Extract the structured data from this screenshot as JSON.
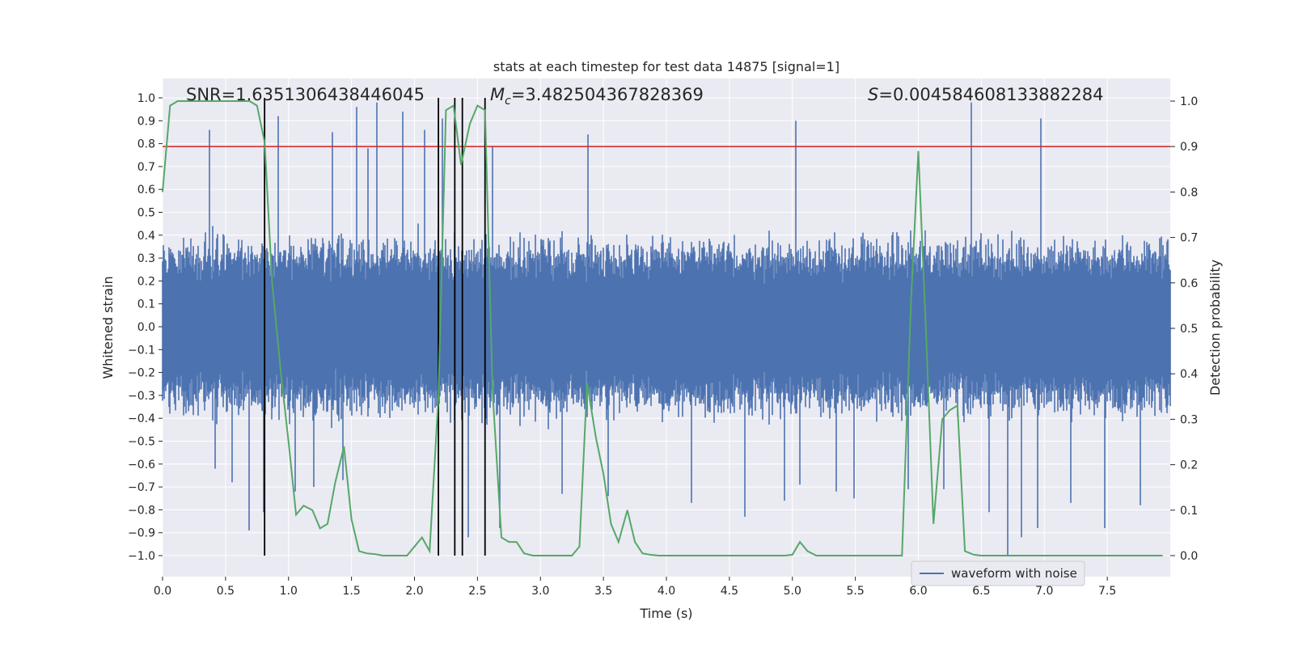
{
  "chart_data": {
    "type": "line",
    "title": "stats at each timestep for test data 14875 [signal=1]",
    "xlabel": "Time (s)",
    "ylabel": "Whitened strain",
    "y2label": "Detection probability",
    "xlim": [
      0.0,
      8.0
    ],
    "ylim": [
      -1.1,
      1.1
    ],
    "y2lim": [
      -0.05,
      1.04
    ],
    "xticks": [
      0.0,
      0.5,
      1.0,
      1.5,
      2.0,
      2.5,
      3.0,
      3.5,
      4.0,
      4.5,
      5.0,
      5.5,
      6.0,
      6.5,
      7.0,
      7.5
    ],
    "yticks": [
      1.0,
      0.9,
      0.8,
      0.7,
      0.6,
      0.5,
      0.4,
      0.3,
      0.2,
      0.1,
      0.0,
      -0.1,
      -0.2,
      -0.3,
      -0.4,
      -0.5,
      -0.6,
      -0.7,
      -0.8,
      -0.9,
      -1.0
    ],
    "y2ticks": [
      1.0,
      0.9,
      0.8,
      0.7,
      0.6,
      0.5,
      0.4,
      0.3,
      0.2,
      0.1,
      0.0
    ],
    "grid": true,
    "legend": {
      "location": "lower-right",
      "entries": [
        "waveform with noise"
      ]
    },
    "annotations": {
      "snr": "SNR=1.6351306438446045",
      "mc_symbol": "M",
      "mc_sub": "c",
      "mc_value": "=3.482504367828369",
      "s_symbol": "S",
      "s_value": "=0.004584608133882284"
    },
    "threshold": {
      "axis": "y2",
      "value": 0.9,
      "color": "#d62728"
    },
    "vlines": {
      "x": [
        0.81,
        2.19,
        2.32,
        2.38,
        2.56
      ],
      "ymin": -1.0,
      "ymax": 1.0,
      "color": "#000000"
    },
    "waveform": {
      "name": "waveform with noise",
      "color": "#4c72b0",
      "sample_rate": 2048,
      "duration": 8.0,
      "amplitude_envelope": 0.42,
      "peaks": [
        [
          0.37,
          0.86
        ],
        [
          0.42,
          -0.62
        ],
        [
          0.55,
          -0.68
        ],
        [
          0.69,
          -0.89
        ],
        [
          0.8,
          -0.81
        ],
        [
          0.92,
          0.92
        ],
        [
          1.05,
          -0.72
        ],
        [
          1.2,
          -0.7
        ],
        [
          1.35,
          0.85
        ],
        [
          1.43,
          -0.67
        ],
        [
          1.54,
          0.96
        ],
        [
          1.63,
          0.78
        ],
        [
          1.7,
          0.98
        ],
        [
          1.91,
          0.94
        ],
        [
          2.08,
          0.86
        ],
        [
          2.22,
          0.91
        ],
        [
          2.43,
          -0.92
        ],
        [
          2.62,
          0.79
        ],
        [
          2.68,
          -0.88
        ],
        [
          3.17,
          -0.73
        ],
        [
          3.38,
          0.84
        ],
        [
          3.54,
          -0.74
        ],
        [
          4.2,
          -0.77
        ],
        [
          4.62,
          -0.83
        ],
        [
          4.94,
          -0.76
        ],
        [
          5.03,
          0.9
        ],
        [
          5.06,
          -0.69
        ],
        [
          5.35,
          -0.72
        ],
        [
          5.49,
          -0.75
        ],
        [
          5.92,
          -0.71
        ],
        [
          6.2,
          -0.71
        ],
        [
          6.42,
          0.98
        ],
        [
          6.56,
          -0.81
        ],
        [
          6.71,
          -1.0
        ],
        [
          6.82,
          -0.92
        ],
        [
          6.95,
          -0.88
        ],
        [
          6.97,
          0.91
        ],
        [
          7.21,
          -0.77
        ],
        [
          7.48,
          -0.88
        ],
        [
          7.76,
          -0.78
        ]
      ]
    },
    "detection_probability": {
      "name": "detection probability",
      "color": "#55a868",
      "x": [
        0.0,
        0.06,
        0.12,
        0.19,
        0.25,
        0.31,
        0.37,
        0.44,
        0.5,
        0.56,
        0.62,
        0.69,
        0.75,
        0.81,
        0.87,
        0.94,
        1.0,
        1.06,
        1.12,
        1.19,
        1.25,
        1.31,
        1.37,
        1.44,
        1.5,
        1.56,
        1.62,
        1.69,
        1.75,
        1.81,
        1.87,
        1.94,
        2.0,
        2.06,
        2.12,
        2.19,
        2.25,
        2.31,
        2.37,
        2.44,
        2.5,
        2.56,
        2.62,
        2.69,
        2.75,
        2.81,
        2.87,
        2.94,
        3.0,
        3.06,
        3.12,
        3.19,
        3.25,
        3.31,
        3.37,
        3.44,
        3.5,
        3.56,
        3.62,
        3.69,
        3.75,
        3.81,
        3.87,
        3.94,
        4.0,
        4.06,
        4.12,
        4.19,
        4.25,
        4.31,
        4.37,
        4.44,
        4.5,
        4.56,
        4.62,
        4.69,
        4.75,
        4.81,
        4.87,
        4.94,
        5.0,
        5.06,
        5.12,
        5.19,
        5.25,
        5.31,
        5.37,
        5.44,
        5.5,
        5.56,
        5.62,
        5.69,
        5.75,
        5.81,
        5.87,
        5.94,
        6.0,
        6.06,
        6.12,
        6.19,
        6.25,
        6.31,
        6.37,
        6.44,
        6.5,
        6.56,
        6.62,
        6.69,
        6.75,
        6.81,
        6.87,
        6.94,
        7.0,
        7.06,
        7.12,
        7.19,
        7.25,
        7.31,
        7.37,
        7.44,
        7.5,
        7.56,
        7.62,
        7.69,
        7.75,
        7.81,
        7.87,
        7.94
      ],
      "values": [
        0.8,
        0.99,
        1.0,
        1.0,
        1.0,
        1.0,
        1.0,
        1.0,
        1.0,
        1.0,
        1.0,
        1.0,
        0.99,
        0.91,
        0.6,
        0.4,
        0.25,
        0.09,
        0.11,
        0.1,
        0.06,
        0.07,
        0.16,
        0.24,
        0.08,
        0.01,
        0.005,
        0.003,
        0.0,
        0.0,
        0.0,
        0.0,
        0.02,
        0.04,
        0.01,
        0.35,
        0.98,
        0.99,
        0.86,
        0.95,
        0.99,
        0.98,
        0.36,
        0.04,
        0.03,
        0.03,
        0.005,
        0.0,
        0.0,
        0.0,
        0.0,
        0.0,
        0.0,
        0.02,
        0.38,
        0.26,
        0.18,
        0.07,
        0.03,
        0.1,
        0.03,
        0.005,
        0.002,
        0.0,
        0.0,
        0.0,
        0.0,
        0.0,
        0.0,
        0.0,
        0.0,
        0.0,
        0.0,
        0.0,
        0.0,
        0.0,
        0.0,
        0.0,
        0.0,
        0.0,
        0.002,
        0.03,
        0.01,
        0.0,
        0.0,
        0.0,
        0.0,
        0.0,
        0.0,
        0.0,
        0.0,
        0.0,
        0.0,
        0.0,
        0.0,
        0.55,
        0.89,
        0.5,
        0.07,
        0.3,
        0.32,
        0.33,
        0.01,
        0.002,
        0.0,
        0.0,
        0.0,
        0.0,
        0.0,
        0.0,
        0.0,
        0.0,
        0.0,
        0.0,
        0.0,
        0.0,
        0.0,
        0.0,
        0.0,
        0.0,
        0.0,
        0.0,
        0.0,
        0.0,
        0.0,
        0.0,
        0.0,
        0.0
      ]
    }
  }
}
